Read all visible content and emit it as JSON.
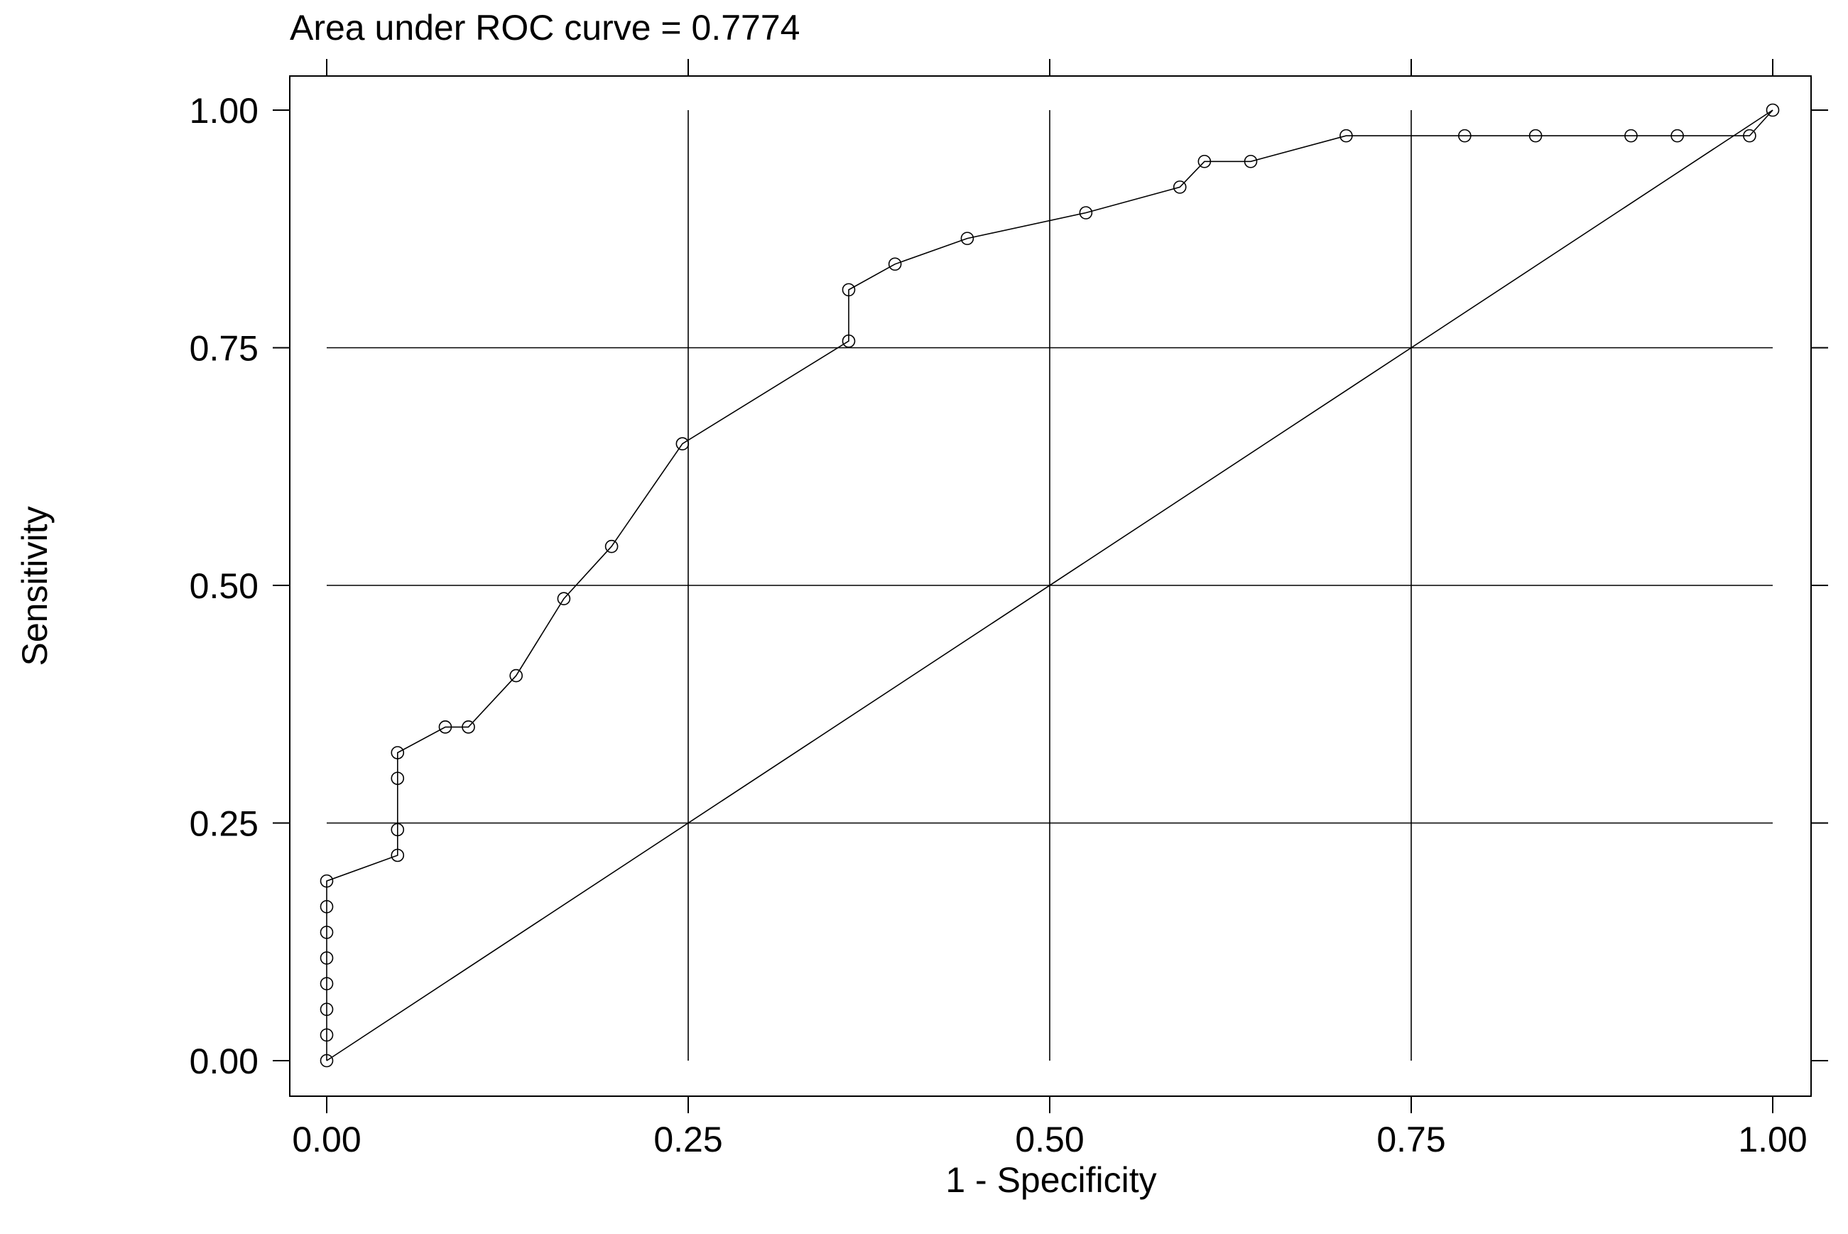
{
  "chart_data": {
    "type": "line",
    "title": "Area under ROC curve = 0.7774",
    "xlabel": "1 - Specificity",
    "ylabel": "Sensitivity",
    "xlim": [
      0,
      1
    ],
    "ylim": [
      0,
      1
    ],
    "xticks": [
      "0.00",
      "0.25",
      "0.50",
      "0.75",
      "1.00"
    ],
    "yticks": [
      "0.00",
      "0.25",
      "0.50",
      "0.75",
      "1.00"
    ],
    "grid": true,
    "series": [
      {
        "marker": "open-circle",
        "x": [
          0,
          0,
          0,
          0,
          0,
          0,
          0,
          0,
          0.049,
          0.049,
          0.049,
          0.049,
          0.082,
          0.098,
          0.131,
          0.164,
          0.197,
          0.246,
          0.361,
          0.361,
          0.393,
          0.443,
          0.525,
          0.59,
          0.607,
          0.639,
          0.705,
          0.787,
          0.836,
          0.902,
          0.934,
          0.984,
          1.0
        ],
        "y": [
          0,
          0.027,
          0.054,
          0.081,
          0.108,
          0.135,
          0.162,
          0.189,
          0.216,
          0.243,
          0.297,
          0.324,
          0.351,
          0.351,
          0.405,
          0.486,
          0.541,
          0.649,
          0.757,
          0.811,
          0.838,
          0.865,
          0.892,
          0.919,
          0.946,
          0.946,
          0.973,
          0.973,
          0.973,
          0.973,
          0.973,
          0.973,
          1.0
        ]
      },
      {
        "x": [
          0,
          1
        ],
        "y": [
          0,
          1
        ]
      }
    ]
  }
}
